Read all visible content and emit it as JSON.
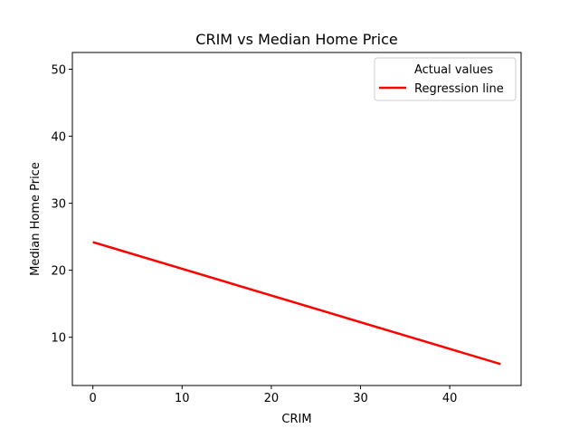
{
  "chart_data": {
    "type": "line",
    "title": "CRIM vs Median Home Price",
    "xlabel": "CRIM",
    "ylabel": "Median Home Price",
    "xlim": [
      -2.3,
      48.0
    ],
    "ylim": [
      2.8,
      52.5
    ],
    "xticks": [
      0,
      10,
      20,
      30,
      40
    ],
    "yticks": [
      10,
      20,
      30,
      40,
      50
    ],
    "grid": false,
    "legend": {
      "placement": "top-right",
      "entries": [
        "Actual values",
        "Regression line"
      ]
    },
    "series": [
      {
        "name": "Actual values",
        "kind": "scatter",
        "visible": false,
        "x": [],
        "y": []
      },
      {
        "name": "Regression line",
        "kind": "line",
        "color": "#ff0000",
        "x": [
          0.0,
          45.7
        ],
        "y": [
          24.2,
          6.0
        ]
      }
    ]
  }
}
